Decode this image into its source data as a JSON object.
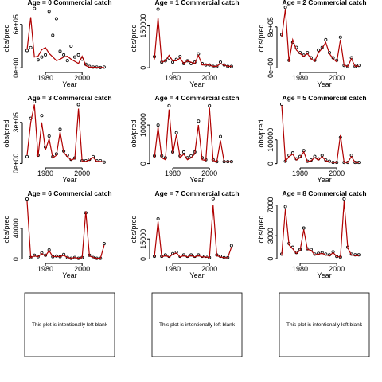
{
  "chart_data": [
    {
      "type": "line",
      "title": "Age =  0 Commercial catch",
      "xlabel": "Year",
      "ylabel": "obs/pred",
      "x": [
        1970,
        1972,
        1974,
        1976,
        1978,
        1980,
        1982,
        1984,
        1986,
        1988,
        1990,
        1992,
        1994,
        1996,
        1998,
        2000,
        2002,
        2004,
        2006,
        2008,
        2010,
        2012
      ],
      "xlim": [
        1968.7,
        2017.7
      ],
      "xticks": [
        1980,
        2000
      ],
      "ylim": [
        -30000,
        850000
      ],
      "yticks": [
        {
          "value": 0,
          "label": "0e+00"
        },
        {
          "value": 600000,
          "label": "6e+05"
        }
      ],
      "series": [
        {
          "mode": "points",
          "color": "#000000",
          "values": [
            240000,
            280000,
            820000,
            110000,
            150000,
            180000,
            780000,
            450000,
            680000,
            230000,
            180000,
            100000,
            300000,
            150000,
            180000,
            120000,
            50000,
            20000,
            10000,
            10000,
            5000,
            10000
          ]
        },
        {
          "mode": "line",
          "color": "#b00000",
          "values": [
            250000,
            700000,
            150000,
            160000,
            250000,
            280000,
            200000,
            150000,
            100000,
            120000,
            150000,
            160000,
            120000,
            90000,
            60000,
            160000,
            30000,
            10000,
            8000,
            6000,
            5000,
            5000
          ]
        }
      ]
    },
    {
      "type": "line",
      "title": "Age =  1 Commercial catch",
      "xlabel": "Year",
      "ylabel": "obs/pred",
      "x": [
        1970,
        1972,
        1974,
        1976,
        1978,
        1980,
        1982,
        1984,
        1986,
        1988,
        1990,
        1992,
        1994,
        1996,
        1998,
        2000,
        2002,
        2004,
        2006,
        2008,
        2010,
        2012
      ],
      "xlim": [
        1968.7,
        2017.7
      ],
      "xticks": [
        1980,
        2000
      ],
      "ylim": [
        -8000,
        220000
      ],
      "yticks": [
        0,
        150000
      ],
      "series": [
        {
          "mode": "points",
          "color": "#000000",
          "values": [
            40000,
            210000,
            20000,
            25000,
            35000,
            20000,
            30000,
            40000,
            15000,
            25000,
            15000,
            20000,
            50000,
            15000,
            10000,
            10000,
            5000,
            5000,
            20000,
            10000,
            5000,
            5000
          ]
        },
        {
          "mode": "line",
          "color": "#b00000",
          "values": [
            30000,
            180000,
            20000,
            25000,
            45000,
            25000,
            25000,
            35000,
            15000,
            25000,
            20000,
            15000,
            45000,
            10000,
            10000,
            10000,
            5000,
            5000,
            15000,
            10000,
            5000,
            5000
          ]
        }
      ]
    },
    {
      "type": "line",
      "title": "Age =  2 Commercial catch",
      "xlabel": "Year",
      "ylabel": "obs/pred",
      "x": [
        1970,
        1972,
        1974,
        1976,
        1978,
        1980,
        1982,
        1984,
        1986,
        1988,
        1990,
        1992,
        1994,
        1996,
        1998,
        2000,
        2002,
        2004,
        2006,
        2008,
        2010,
        2012
      ],
      "xlim": [
        1968.7,
        2017.7
      ],
      "xticks": [
        1980,
        2000
      ],
      "ylim": [
        -40000,
        1200000
      ],
      "yticks": [
        {
          "value": 0,
          "label": "0e+00"
        },
        {
          "value": 800000,
          "label": "8e+05"
        }
      ],
      "series": [
        {
          "mode": "points",
          "color": "#000000",
          "values": [
            650000,
            1180000,
            150000,
            500000,
            400000,
            300000,
            250000,
            300000,
            200000,
            150000,
            350000,
            400000,
            550000,
            300000,
            200000,
            150000,
            600000,
            50000,
            30000,
            200000,
            30000,
            50000
          ]
        },
        {
          "mode": "line",
          "color": "#b00000",
          "values": [
            600000,
            1150000,
            120000,
            550000,
            350000,
            280000,
            230000,
            280000,
            180000,
            130000,
            300000,
            380000,
            500000,
            280000,
            180000,
            120000,
            550000,
            50000,
            30000,
            180000,
            30000,
            40000
          ]
        }
      ]
    },
    {
      "type": "line",
      "title": "Age =  3 Commercial catch",
      "xlabel": "Year",
      "ylabel": "obs/pred",
      "x": [
        1970,
        1972,
        1974,
        1976,
        1978,
        1980,
        1982,
        1984,
        1986,
        1988,
        1990,
        1992,
        1994,
        1996,
        1998,
        2000,
        2002,
        2004,
        2006,
        2008,
        2010,
        2012
      ],
      "xlim": [
        1968.7,
        2017.7
      ],
      "xticks": [
        1980,
        2000
      ],
      "ylim": [
        -15000,
        450000
      ],
      "yticks": [
        {
          "value": 0,
          "label": "0e+00"
        },
        {
          "value": 300000,
          "label": "3e+05"
        }
      ],
      "series": [
        {
          "mode": "points",
          "color": "#000000",
          "values": [
            50000,
            330000,
            450000,
            60000,
            350000,
            120000,
            200000,
            50000,
            70000,
            250000,
            90000,
            60000,
            30000,
            40000,
            430000,
            20000,
            20000,
            30000,
            50000,
            20000,
            20000,
            10000
          ]
        },
        {
          "mode": "line",
          "color": "#b00000",
          "values": [
            60000,
            300000,
            430000,
            50000,
            300000,
            100000,
            180000,
            40000,
            60000,
            230000,
            80000,
            50000,
            25000,
            35000,
            400000,
            15000,
            15000,
            25000,
            45000,
            15000,
            15000,
            10000
          ]
        }
      ]
    },
    {
      "type": "line",
      "title": "Age =  4 Commercial catch",
      "xlabel": "Year",
      "ylabel": "obs/pred",
      "x": [
        1970,
        1972,
        1974,
        1976,
        1978,
        1980,
        1982,
        1984,
        1986,
        1988,
        1990,
        1992,
        1994,
        1996,
        1998,
        2000,
        2002,
        2004,
        2006,
        2008,
        2010,
        2012
      ],
      "xlim": [
        1968.7,
        2017.7
      ],
      "xticks": [
        1980,
        2000
      ],
      "ylim": [
        -5000,
        160000
      ],
      "yticks": [
        0,
        100000
      ],
      "series": [
        {
          "mode": "points",
          "color": "#000000",
          "values": [
            20000,
            100000,
            20000,
            15000,
            150000,
            30000,
            80000,
            20000,
            30000,
            15000,
            20000,
            30000,
            110000,
            15000,
            10000,
            150000,
            10000,
            5000,
            70000,
            5000,
            5000,
            5000
          ]
        },
        {
          "mode": "line",
          "color": "#b00000",
          "values": [
            15000,
            95000,
            15000,
            10000,
            140000,
            25000,
            75000,
            15000,
            25000,
            10000,
            15000,
            25000,
            100000,
            10000,
            8000,
            145000,
            8000,
            5000,
            60000,
            5000,
            5000,
            5000
          ]
        }
      ]
    },
    {
      "type": "line",
      "title": "Age =  5 Commercial catch",
      "xlabel": "Year",
      "ylabel": "obs/pred",
      "x": [
        1970,
        1972,
        1974,
        1976,
        1978,
        1980,
        1982,
        1984,
        1986,
        1988,
        1990,
        1992,
        1994,
        1996,
        1998,
        2000,
        2002,
        2004,
        2006,
        2008,
        2010,
        2012
      ],
      "xlim": [
        1968.7,
        2017.7
      ],
      "xticks": [
        1980,
        2000
      ],
      "ylim": [
        -8000,
        260000
      ],
      "yticks": [
        0,
        100000
      ],
      "series": [
        {
          "mode": "points",
          "color": "#000000",
          "values": [
            250000,
            10000,
            35000,
            45000,
            20000,
            30000,
            55000,
            10000,
            15000,
            30000,
            20000,
            35000,
            15000,
            10000,
            5000,
            5000,
            110000,
            5000,
            5000,
            35000,
            5000,
            5000
          ]
        },
        {
          "mode": "line",
          "color": "#b00000",
          "values": [
            245000,
            10000,
            30000,
            40000,
            15000,
            25000,
            50000,
            8000,
            12000,
            25000,
            15000,
            30000,
            12000,
            8000,
            5000,
            5000,
            120000,
            5000,
            5000,
            30000,
            5000,
            5000
          ]
        }
      ]
    },
    {
      "type": "line",
      "title": "Age =  6 Commercial catch",
      "xlabel": "Year",
      "ylabel": "obs/pred",
      "x": [
        1970,
        1972,
        1974,
        1976,
        1978,
        1980,
        1982,
        1984,
        1986,
        1988,
        1990,
        1992,
        1994,
        1996,
        1998,
        2000,
        2002,
        2004,
        2006,
        2008,
        2010,
        2012
      ],
      "xlim": [
        1968.7,
        2017.7
      ],
      "xticks": [
        1980,
        2000
      ],
      "ylim": [
        -2500,
        80000
      ],
      "yticks": [
        0,
        40000
      ],
      "series": [
        {
          "mode": "points",
          "color": "#000000",
          "values": [
            78000,
            2000,
            5000,
            3000,
            8000,
            5000,
            12000,
            3000,
            4000,
            3000,
            6000,
            2000,
            1000,
            2000,
            1000,
            2000,
            60000,
            5000,
            2000,
            1000,
            1000,
            20000
          ]
        },
        {
          "mode": "line",
          "color": "#b00000",
          "values": [
            75000,
            2000,
            4000,
            3000,
            7000,
            4000,
            11000,
            3000,
            3500,
            3000,
            5000,
            2000,
            1000,
            2000,
            1000,
            2000,
            62000,
            4000,
            2000,
            1000,
            1000,
            18000
          ]
        }
      ]
    },
    {
      "type": "line",
      "title": "Age =  7 Commercial catch",
      "xlabel": "Year",
      "ylabel": "obs/pred",
      "x": [
        1970,
        1972,
        1974,
        1976,
        1978,
        1980,
        1982,
        1984,
        1986,
        1988,
        1990,
        1992,
        1994,
        1996,
        1998,
        2000,
        2002,
        2004,
        2006,
        2008,
        2010,
        2012
      ],
      "xlim": [
        1968.7,
        2017.7
      ],
      "xticks": [
        1980,
        2000
      ],
      "ylim": [
        -1500,
        46000
      ],
      "yticks": [
        0,
        15000
      ],
      "series": [
        {
          "mode": "points",
          "color": "#000000",
          "values": [
            2000,
            30000,
            2000,
            3000,
            2000,
            4000,
            5000,
            2000,
            3000,
            2000,
            3000,
            2000,
            3000,
            2000,
            2000,
            1000,
            45000,
            3000,
            2000,
            1000,
            1000,
            10000
          ]
        },
        {
          "mode": "line",
          "color": "#b00000",
          "values": [
            1500,
            28000,
            1500,
            2500,
            1500,
            3500,
            4500,
            1500,
            2500,
            1500,
            2500,
            1500,
            2500,
            1500,
            1500,
            1000,
            40000,
            2500,
            1500,
            1000,
            1000,
            9000
          ]
        }
      ]
    },
    {
      "type": "line",
      "title": "Age =  8 Commercial catch",
      "xlabel": "Year",
      "ylabel": "obs/pred",
      "x": [
        1970,
        1972,
        1974,
        1976,
        1978,
        1980,
        1982,
        1984,
        1986,
        1988,
        1990,
        1992,
        1994,
        1996,
        1998,
        2000,
        2002,
        2004,
        2006,
        2008,
        2010,
        2012
      ],
      "xlim": [
        1968.7,
        2017.7
      ],
      "xticks": [
        1980,
        2000
      ],
      "ylim": [
        -300,
        8000
      ],
      "yticks": [
        0,
        3000,
        7000
      ],
      "series": [
        {
          "mode": "points",
          "color": "#000000",
          "values": [
            600,
            6800,
            2000,
            1500,
            800,
            1200,
            4000,
            1300,
            1200,
            600,
            700,
            800,
            600,
            500,
            900,
            300,
            200,
            7800,
            1500,
            600,
            500,
            500
          ]
        },
        {
          "mode": "line",
          "color": "#b00000",
          "values": [
            500,
            6500,
            1800,
            1300,
            700,
            1100,
            3800,
            1200,
            1100,
            500,
            600,
            700,
            500,
            400,
            800,
            300,
            200,
            7500,
            1400,
            500,
            400,
            400
          ]
        }
      ]
    }
  ],
  "blank_panels": [
    "This plot is intentionally left blank",
    "This plot is intentionally left blank",
    "This plot is intentionally left blank"
  ]
}
